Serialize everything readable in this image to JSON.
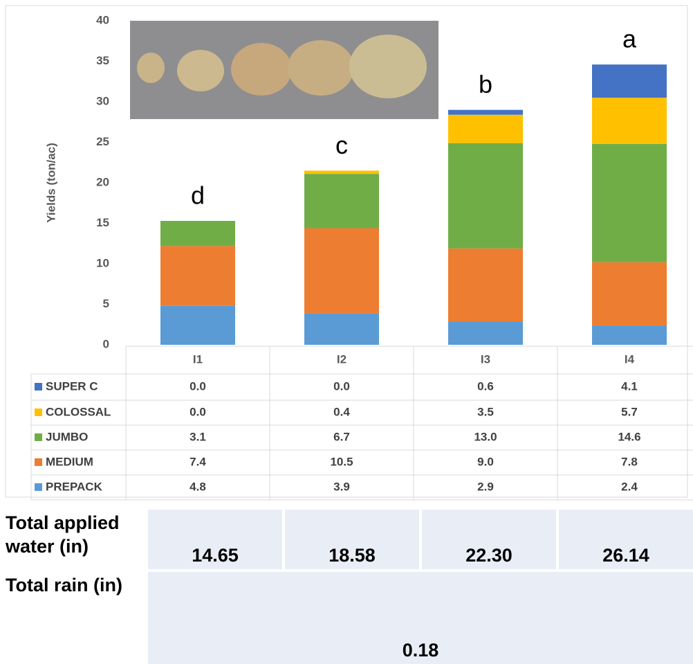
{
  "chart_data": {
    "type": "stacked_bar",
    "y_label": "Yields (ton/ac)",
    "categories": [
      "I1",
      "I2",
      "I3",
      "I4"
    ],
    "annotations": [
      "d",
      "c",
      "b",
      "a"
    ],
    "series": [
      {
        "name": "PREPACK",
        "color": "#5b9bd5",
        "values": [
          4.8,
          3.9,
          2.9,
          2.4
        ],
        "value_labels": [
          "4.8",
          "3.9",
          "2.9",
          "2.4"
        ]
      },
      {
        "name": "MEDIUM",
        "color": "#ed7d31",
        "values": [
          7.4,
          10.5,
          9.0,
          7.8
        ],
        "value_labels": [
          "7.4",
          "10.5",
          "9.0",
          "7.8"
        ]
      },
      {
        "name": "JUMBO",
        "color": "#70ad47",
        "values": [
          3.1,
          6.7,
          13.0,
          14.6
        ],
        "value_labels": [
          "3.1",
          "6.7",
          "13.0",
          "14.6"
        ]
      },
      {
        "name": "COLOSSAL",
        "color": "#ffc000",
        "values": [
          0.0,
          0.4,
          3.5,
          5.7
        ],
        "value_labels": [
          "0.0",
          "0.4",
          "3.5",
          "5.7"
        ]
      },
      {
        "name": "SUPER C",
        "color": "#4472c4",
        "values": [
          0.0,
          0.0,
          0.6,
          4.1
        ],
        "value_labels": [
          "0.0",
          "0.0",
          "0.6",
          "4.1"
        ]
      }
    ],
    "ylim": [
      0,
      40
    ],
    "yticks": [
      0,
      5,
      10,
      15,
      20,
      25,
      30,
      35,
      40
    ]
  },
  "table": {
    "rows": [
      {
        "label": "Total applied water (in)",
        "cells": [
          "14.65",
          "18.58",
          "22.30",
          "26.14"
        ]
      },
      {
        "label": "Total rain (in)",
        "cells": [
          "0.18"
        ]
      }
    ]
  }
}
